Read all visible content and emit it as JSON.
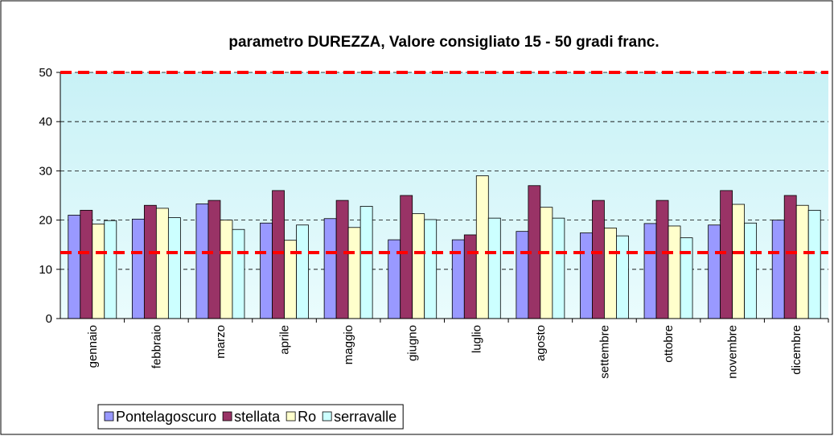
{
  "chart_data": {
    "type": "bar",
    "title": "parametro DUREZZA, Valore consigliato 15 - 50 gradi franc.",
    "categories": [
      "gennaio",
      "febbraio",
      "marzo",
      "aprile",
      "maggio",
      "giugno",
      "luglio",
      "agosto",
      "settembre",
      "ottobre",
      "novembre",
      "dicembre"
    ],
    "series": [
      {
        "name": "Pontelagoscuro",
        "color": "#9999ff",
        "values": [
          21,
          20.2,
          23.3,
          19.4,
          20.3,
          16,
          16,
          17.7,
          17.4,
          19.3,
          19,
          20
        ]
      },
      {
        "name": "stellata",
        "color": "#993366",
        "values": [
          22,
          23,
          24,
          26,
          24,
          25,
          17,
          27,
          24,
          24,
          26,
          25
        ]
      },
      {
        "name": "Ro",
        "color": "#ffffcc",
        "values": [
          19.2,
          22.4,
          20,
          15.9,
          18.5,
          21.3,
          29,
          22.6,
          18.4,
          18.8,
          23.2,
          23
        ]
      },
      {
        "name": "serravalle",
        "color": "#ccffff",
        "values": [
          19.9,
          20.5,
          18.1,
          19,
          22.8,
          20.1,
          20.4,
          20.4,
          16.8,
          16.4,
          19.4,
          22
        ]
      }
    ],
    "reference_lines": [
      {
        "value": 50,
        "color": "#ff0000"
      },
      {
        "value": 13.4,
        "color": "#ff0000"
      }
    ],
    "ylim": [
      0,
      50
    ],
    "yticks": [
      0,
      10,
      20,
      30,
      40,
      50
    ],
    "grid": true,
    "legend": "bottom"
  }
}
